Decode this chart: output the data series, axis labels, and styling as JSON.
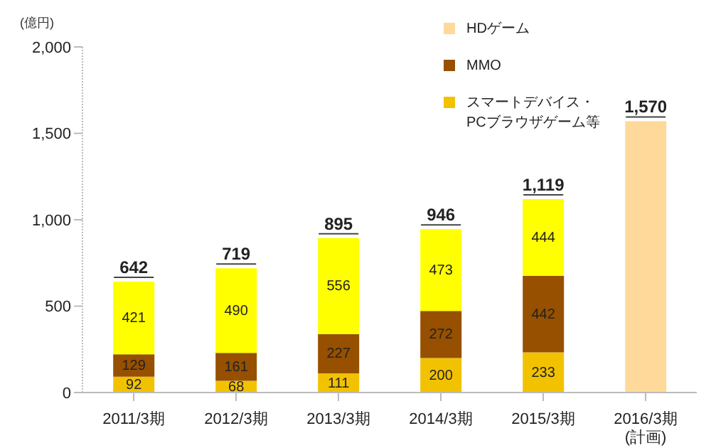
{
  "chart_data": {
    "type": "bar",
    "stacked": true,
    "ylabel": "(億円)",
    "categories": [
      "2011/3期",
      "2012/3期",
      "2013/3期",
      "2014/3期",
      "2015/3期",
      "2016/3期\n(計画)"
    ],
    "series": [
      {
        "name": "スマートデバイス・\nPCブラウザゲーム等",
        "color": "#f2c200",
        "values": [
          92,
          68,
          111,
          200,
          233,
          null
        ],
        "value_labels": [
          "92",
          "68",
          "111",
          "200",
          "233",
          null
        ]
      },
      {
        "name": "MMO",
        "color": "#965000",
        "values": [
          129,
          161,
          227,
          272,
          442,
          null
        ],
        "value_labels": [
          "129",
          "161",
          "227",
          "272",
          "442",
          null
        ]
      },
      {
        "name": "HDゲーム",
        "color": "#ffd99a",
        "colors": [
          "#ffff00",
          "#ffff00",
          "#ffff00",
          "#ffff00",
          "#ffff00",
          "#ffd99a"
        ],
        "values": [
          421,
          490,
          556,
          473,
          444,
          1570
        ],
        "value_labels": [
          "421",
          "490",
          "556",
          "473",
          "444",
          null
        ]
      }
    ],
    "totals": [
      "642",
      "719",
      "895",
      "946",
      "1,119",
      "1,570"
    ],
    "ylim": [
      0,
      2000
    ],
    "yticks": [
      0,
      500,
      {
        "value": 1000,
        "label": "1,000"
      },
      {
        "value": 1500,
        "label": "1,500"
      },
      {
        "value": 2000,
        "label": "2,000"
      }
    ],
    "grid": false,
    "legend": "top"
  }
}
